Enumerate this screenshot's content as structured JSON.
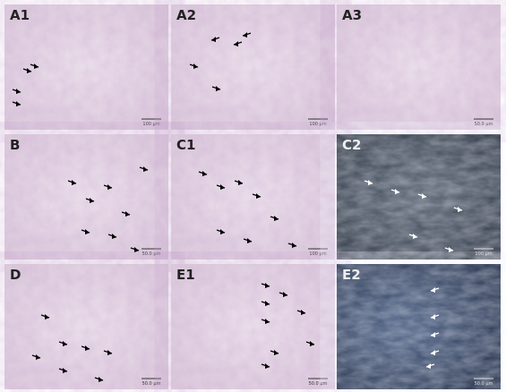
{
  "panels": [
    {
      "label": "A1",
      "scale": "100 µm"
    },
    {
      "label": "A2",
      "scale": "100 µm"
    },
    {
      "label": "A3",
      "scale": "50.0 µm"
    },
    {
      "label": "B",
      "scale": "50.0 µm"
    },
    {
      "label": "C1",
      "scale": "100 µm"
    },
    {
      "label": "C2",
      "scale": "100 µm"
    },
    {
      "label": "D",
      "scale": "50.0 µm"
    },
    {
      "label": "E1",
      "scale": "50.0 µm"
    },
    {
      "label": "E2",
      "scale": "50.0 µm"
    }
  ]
}
